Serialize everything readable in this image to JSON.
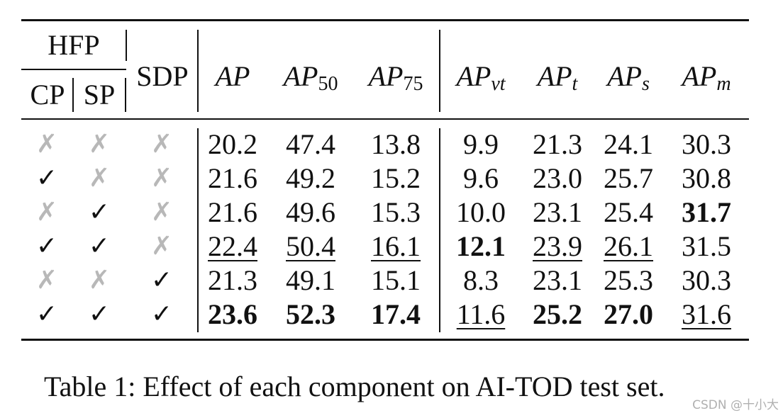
{
  "table": {
    "header": {
      "hfp": "HFP",
      "cp": "CP",
      "sp": "SP",
      "sdp": "SDP",
      "metrics": [
        {
          "base": "AP",
          "sub": ""
        },
        {
          "base": "AP",
          "sub": "50"
        },
        {
          "base": "AP",
          "sub": "75"
        },
        {
          "base": "AP",
          "sub": "vt"
        },
        {
          "base": "AP",
          "sub": "t"
        },
        {
          "base": "AP",
          "sub": "s"
        },
        {
          "base": "AP",
          "sub": "m"
        }
      ]
    },
    "rows": [
      {
        "marks": [
          "✗",
          "✗",
          "✗"
        ],
        "values": [
          "20.2",
          "47.4",
          "13.8",
          "9.9",
          "21.3",
          "24.1",
          "30.3"
        ]
      },
      {
        "marks": [
          "✓",
          "✗",
          "✗"
        ],
        "values": [
          "21.6",
          "49.2",
          "15.2",
          "9.6",
          "23.0",
          "25.7",
          "30.8"
        ]
      },
      {
        "marks": [
          "✗",
          "✓",
          "✗"
        ],
        "values": [
          "21.6",
          "49.6",
          "15.3",
          "10.0",
          "23.1",
          "25.4",
          "31.7"
        ]
      },
      {
        "marks": [
          "✓",
          "✓",
          "✗"
        ],
        "values": [
          "22.4",
          "50.4",
          "16.1",
          "12.1",
          "23.9",
          "26.1",
          "31.5"
        ]
      },
      {
        "marks": [
          "✗",
          "✗",
          "✓"
        ],
        "values": [
          "21.3",
          "49.1",
          "15.1",
          "8.3",
          "23.1",
          "25.3",
          "30.3"
        ]
      },
      {
        "marks": [
          "✓",
          "✓",
          "✓"
        ],
        "values": [
          "23.6",
          "52.3",
          "17.4",
          "11.6",
          "25.2",
          "27.0",
          "31.6"
        ]
      }
    ],
    "emphasis": {
      "bold": [
        [
          2,
          6
        ],
        [
          3,
          3
        ],
        [
          5,
          0
        ],
        [
          5,
          1
        ],
        [
          5,
          2
        ],
        [
          5,
          4
        ],
        [
          5,
          5
        ]
      ],
      "underline": [
        [
          3,
          0
        ],
        [
          3,
          1
        ],
        [
          3,
          2
        ],
        [
          3,
          4
        ],
        [
          3,
          5
        ],
        [
          5,
          3
        ],
        [
          5,
          6
        ]
      ]
    }
  },
  "caption": "Table 1: Effect of each component on AI-TOD test set.",
  "watermark": "CSDN @十小大"
}
